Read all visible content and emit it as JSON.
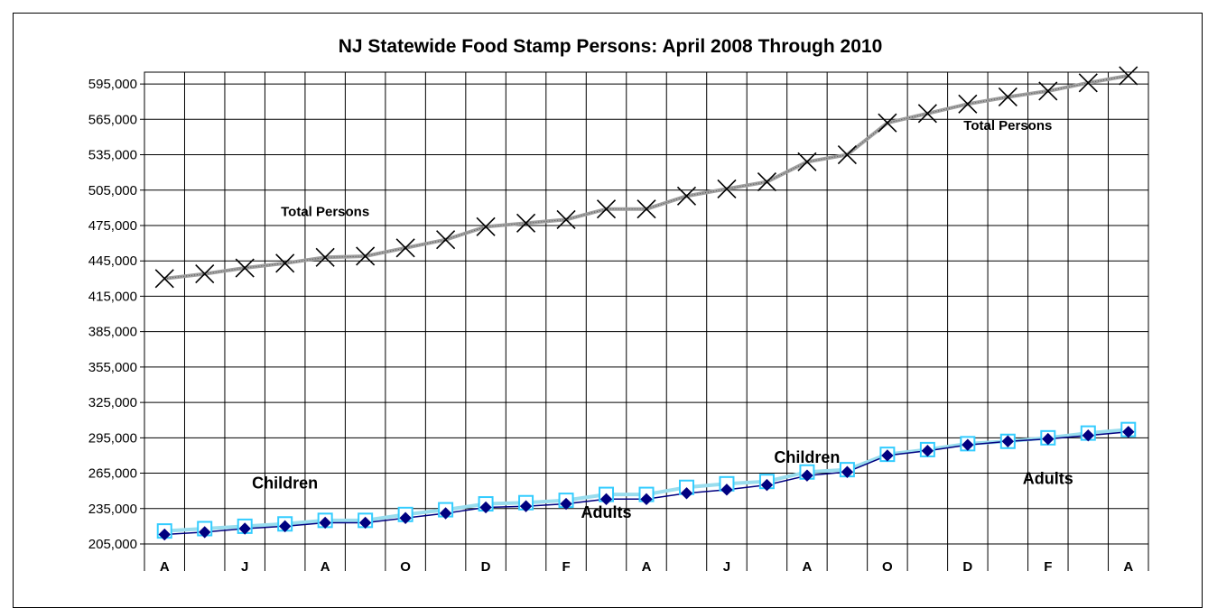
{
  "chart_data": {
    "type": "line",
    "title": "NJ Statewide Food Stamp Persons: April 2008 Through 2010",
    "xlabel": "",
    "ylabel": "",
    "ylim": [
      205000,
      605000
    ],
    "yticks": [
      "205,000",
      "235,000",
      "265,000",
      "295,000",
      "325,000",
      "355,000",
      "385,000",
      "415,000",
      "445,000",
      "475,000",
      "505,000",
      "535,000",
      "565,000",
      "595,000"
    ],
    "ytick_values": [
      205000,
      235000,
      265000,
      295000,
      325000,
      355000,
      385000,
      415000,
      445000,
      475000,
      505000,
      535000,
      565000,
      595000
    ],
    "x_tick_labels": [
      "A",
      "",
      "J",
      "",
      "A",
      "",
      "O",
      "",
      "D",
      "",
      "F",
      "",
      "A",
      "",
      "J",
      "",
      "A",
      "",
      "O",
      "",
      "D",
      "",
      "F",
      "",
      "A"
    ],
    "grid": true,
    "colors": {
      "total": "#000000",
      "children_marker": "#33ccff",
      "adults_marker": "#000080",
      "total_line": "#a0a0a0",
      "children_line": "#99ddee",
      "adults_line": "#000080"
    },
    "series": [
      {
        "name": "Total Persons",
        "marker": "x",
        "values": [
          430000,
          434000,
          439000,
          443000,
          448000,
          449000,
          456000,
          463000,
          474000,
          477000,
          480000,
          489000,
          489000,
          500000,
          506000,
          512000,
          529000,
          535000,
          562000,
          570000,
          578000,
          584000,
          589000,
          596000,
          602000
        ]
      },
      {
        "name": "Children",
        "marker": "square",
        "values": [
          216000,
          218000,
          220000,
          222000,
          225000,
          225000,
          230000,
          234000,
          239000,
          240000,
          242000,
          247000,
          247000,
          253000,
          256000,
          258000,
          266000,
          268000,
          281000,
          285000,
          290000,
          292000,
          295000,
          299000,
          302000
        ]
      },
      {
        "name": "Adults",
        "marker": "diamond",
        "values": [
          213000,
          215000,
          218000,
          220000,
          223000,
          223000,
          227000,
          231000,
          236000,
          237000,
          239000,
          243000,
          243000,
          248000,
          251000,
          255000,
          263000,
          266000,
          280000,
          284000,
          289000,
          292000,
          294000,
          297000,
          300000
        ]
      }
    ],
    "annotations": [
      {
        "text": "Total Persons",
        "index": 4,
        "value": 483000,
        "size": 15
      },
      {
        "text": "Total Persons",
        "index": 21,
        "value": 556000,
        "size": 15
      },
      {
        "text": "Children",
        "index": 3,
        "value": 252000,
        "size": 18
      },
      {
        "text": "Children",
        "index": 16,
        "value": 274000,
        "size": 18
      },
      {
        "text": "Adults",
        "index": 11,
        "value": 227000,
        "size": 18
      },
      {
        "text": "Adults",
        "index": 22,
        "value": 256000,
        "size": 18
      }
    ]
  }
}
